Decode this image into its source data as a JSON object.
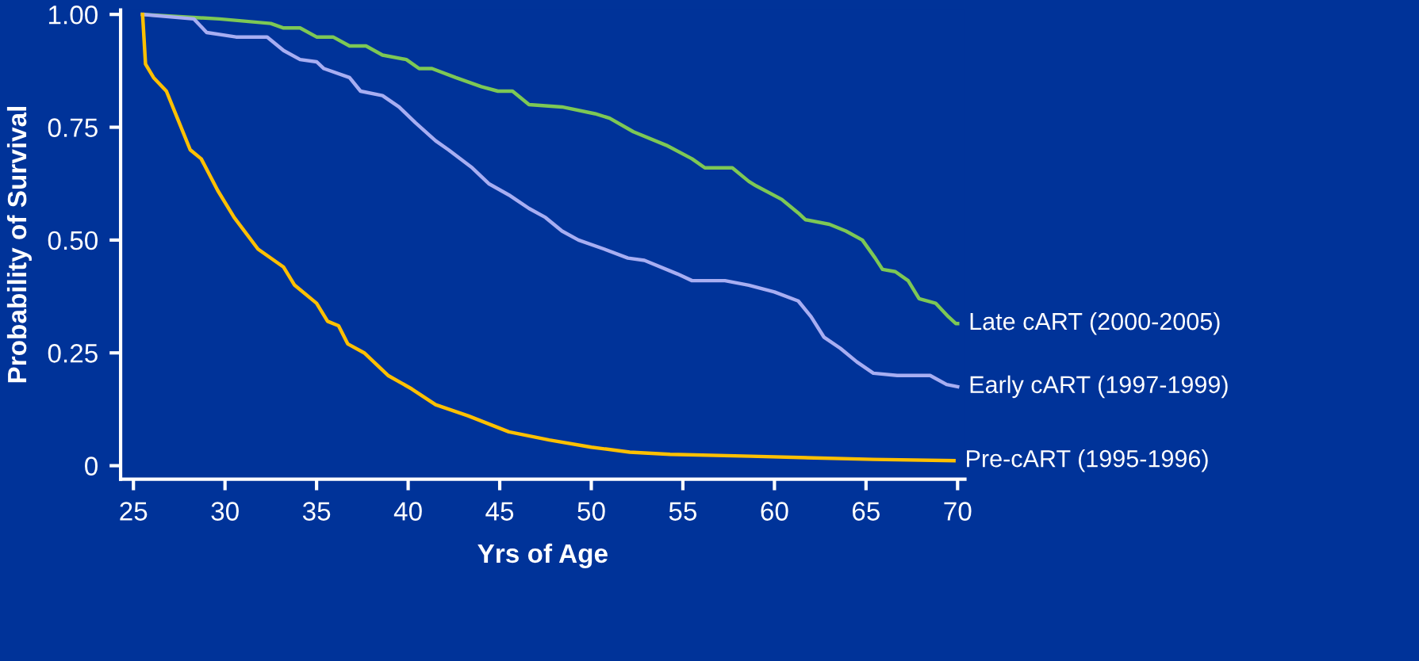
{
  "chart_data": {
    "type": "line",
    "xlabel": "Yrs of Age",
    "ylabel": "Probability of Survival",
    "xlim": [
      24.3,
      70.4
    ],
    "xticks": [
      25,
      30,
      35,
      40,
      45,
      50,
      55,
      60,
      65,
      70
    ],
    "ylim": [
      -0.03,
      1.01
    ],
    "yticks": [
      {
        "value": 0,
        "label": "0"
      },
      {
        "value": 0.25,
        "label": "0.25"
      },
      {
        "value": 0.5,
        "label": "0.50"
      },
      {
        "value": 0.75,
        "label": "0.75"
      },
      {
        "value": 1,
        "label": "1.00"
      }
    ],
    "grid": false,
    "legend": false,
    "marker": "none",
    "line_style": "solid",
    "series": [
      {
        "name": "Late cART (2000-2005)",
        "color": "#7dc855",
        "x": [
          25.5,
          29.7,
          32.5,
          33.2,
          34.1,
          35,
          35.9,
          36.8,
          37.7,
          38.6,
          39.9,
          40.6,
          41.3,
          42.6,
          44,
          44.9,
          45.7,
          46.6,
          48.4,
          50.2,
          51,
          52.3,
          54.1,
          55.5,
          56.2,
          57.7,
          58.6,
          59,
          60.4,
          61.3,
          61.7,
          63,
          63.9,
          64.8,
          65.5,
          65.9,
          66.6,
          67.3,
          67.9,
          68.8,
          69.5,
          69.9,
          70
        ],
        "values": [
          1.0,
          0.99,
          0.98,
          0.97,
          0.97,
          0.95,
          0.95,
          0.93,
          0.93,
          0.91,
          0.9,
          0.88,
          0.88,
          0.86,
          0.84,
          0.83,
          0.83,
          0.8,
          0.795,
          0.78,
          0.77,
          0.74,
          0.71,
          0.68,
          0.66,
          0.66,
          0.63,
          0.62,
          0.59,
          0.56,
          0.545,
          0.535,
          0.52,
          0.5,
          0.46,
          0.435,
          0.43,
          0.41,
          0.37,
          0.36,
          0.33,
          0.315,
          0.315
        ]
      },
      {
        "name": "Early cART (1997-1999)",
        "color": "#a8aef2",
        "x": [
          25.5,
          28.3,
          29,
          30.6,
          32.3,
          33.2,
          34.1,
          35,
          35.4,
          36.8,
          37.4,
          38.6,
          39.5,
          40.4,
          41.5,
          42.2,
          43.5,
          44.4,
          45.5,
          46.6,
          47.5,
          48.4,
          49.3,
          50.7,
          52,
          52.9,
          54.7,
          55.5,
          57.3,
          58.6,
          60,
          61.3,
          62,
          62.7,
          63.6,
          64.5,
          65.4,
          66.7,
          68.5,
          69.4,
          70
        ],
        "values": [
          1.0,
          0.99,
          0.96,
          0.95,
          0.95,
          0.92,
          0.9,
          0.895,
          0.88,
          0.86,
          0.83,
          0.82,
          0.795,
          0.76,
          0.72,
          0.7,
          0.66,
          0.625,
          0.6,
          0.57,
          0.55,
          0.52,
          0.5,
          0.48,
          0.46,
          0.455,
          0.425,
          0.41,
          0.41,
          0.4,
          0.385,
          0.365,
          0.33,
          0.285,
          0.26,
          0.23,
          0.205,
          0.2,
          0.2,
          0.18,
          0.175
        ]
      },
      {
        "name": "Pre-cART (1995-1996)",
        "color": "#ffc000",
        "x": [
          25.5,
          25.66,
          26.1,
          26.8,
          27.4,
          28.1,
          28.7,
          29.6,
          30.5,
          31.8,
          33.2,
          33.8,
          35,
          35.6,
          36.2,
          36.7,
          37.6,
          38.9,
          40.2,
          41.5,
          43.3,
          45.5,
          47.7,
          50,
          52.1,
          54.3,
          58.7,
          65.4,
          69.8
        ],
        "values": [
          1.0,
          0.89,
          0.86,
          0.83,
          0.77,
          0.7,
          0.68,
          0.61,
          0.55,
          0.48,
          0.44,
          0.4,
          0.36,
          0.32,
          0.31,
          0.27,
          0.25,
          0.2,
          0.17,
          0.135,
          0.11,
          0.075,
          0.057,
          0.041,
          0.03,
          0.025,
          0.021,
          0.014,
          0.011
        ]
      }
    ]
  }
}
